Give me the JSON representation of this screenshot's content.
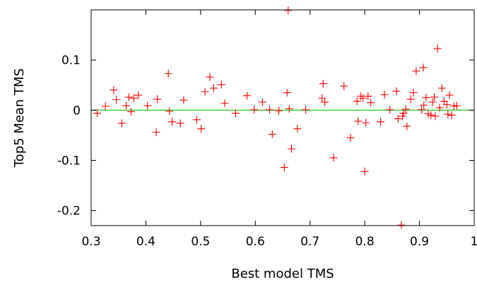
{
  "chart_data": {
    "type": "scatter",
    "title": "",
    "xlabel": "Best model TMS",
    "ylabel": "Top5 Mean TMS",
    "xlim": [
      0.3,
      1.0
    ],
    "ylim": [
      -0.23,
      0.2
    ],
    "xticks": [
      0.3,
      0.4,
      0.5,
      0.6,
      0.7,
      0.8,
      0.9,
      1.0
    ],
    "xtick_labels": [
      "0.3",
      "0.4",
      "0.5",
      "0.6",
      "0.7",
      "0.8",
      "0.9",
      "1"
    ],
    "yticks": [
      -0.2,
      -0.1,
      0,
      0.1
    ],
    "ytick_labels": [
      "-0.2",
      "-0.1",
      "0",
      "0.1"
    ],
    "grid": false,
    "legend": "none",
    "reference_line": {
      "y": 0,
      "color": "#33cc33"
    },
    "marker": {
      "shape": "plus",
      "color": "#ff0000"
    },
    "series": [
      {
        "name": "",
        "points": [
          [
            0.311,
            -0.006
          ],
          [
            0.326,
            0.008
          ],
          [
            0.341,
            0.04
          ],
          [
            0.346,
            0.021
          ],
          [
            0.356,
            -0.026
          ],
          [
            0.364,
            0.009
          ],
          [
            0.369,
            0.026
          ],
          [
            0.373,
            -0.003
          ],
          [
            0.378,
            0.024
          ],
          [
            0.386,
            0.03
          ],
          [
            0.403,
            0.009
          ],
          [
            0.419,
            -0.044
          ],
          [
            0.421,
            0.022
          ],
          [
            0.441,
            0.073
          ],
          [
            0.443,
            -0.002
          ],
          [
            0.448,
            -0.023
          ],
          [
            0.463,
            -0.026
          ],
          [
            0.469,
            0.02
          ],
          [
            0.493,
            -0.019
          ],
          [
            0.501,
            -0.037
          ],
          [
            0.508,
            0.037
          ],
          [
            0.517,
            0.066
          ],
          [
            0.524,
            0.044
          ],
          [
            0.538,
            0.051
          ],
          [
            0.544,
            0.014
          ],
          [
            0.564,
            -0.006
          ],
          [
            0.585,
            0.029
          ],
          [
            0.598,
            0.001
          ],
          [
            0.613,
            0.016
          ],
          [
            0.626,
            0.001
          ],
          [
            0.631,
            -0.048
          ],
          [
            0.643,
            -0.001
          ],
          [
            0.653,
            -0.114
          ],
          [
            0.658,
            0.035
          ],
          [
            0.66,
            0.199
          ],
          [
            0.662,
            0.003
          ],
          [
            0.666,
            -0.077
          ],
          [
            0.677,
            -0.037
          ],
          [
            0.692,
            0.001
          ],
          [
            0.722,
            0.024
          ],
          [
            0.724,
            0.053
          ],
          [
            0.727,
            0.016
          ],
          [
            0.743,
            -0.095
          ],
          [
            0.762,
            0.048
          ],
          [
            0.774,
            -0.055
          ],
          [
            0.786,
            0.018
          ],
          [
            0.788,
            -0.022
          ],
          [
            0.793,
            0.028
          ],
          [
            0.797,
            0.024
          ],
          [
            0.8,
            -0.122
          ],
          [
            0.802,
            -0.025
          ],
          [
            0.806,
            0.028
          ],
          [
            0.811,
            0.015
          ],
          [
            0.829,
            -0.023
          ],
          [
            0.836,
            0.031
          ],
          [
            0.846,
            0.001
          ],
          [
            0.858,
            0.038
          ],
          [
            0.861,
            -0.017
          ],
          [
            0.867,
            -0.229
          ],
          [
            0.869,
            -0.012
          ],
          [
            0.871,
            -0.006
          ],
          [
            0.875,
            0.002
          ],
          [
            0.877,
            -0.032
          ],
          [
            0.884,
            0.022
          ],
          [
            0.889,
            0.035
          ],
          [
            0.894,
            0.078
          ],
          [
            0.904,
            0.001
          ],
          [
            0.907,
            0.085
          ],
          [
            0.908,
            0.01
          ],
          [
            0.912,
            0.025
          ],
          [
            0.916,
            -0.007
          ],
          [
            0.921,
            -0.01
          ],
          [
            0.924,
            0.016
          ],
          [
            0.927,
            0.026
          ],
          [
            0.929,
            -0.012
          ],
          [
            0.933,
            0.123
          ],
          [
            0.937,
            0.005
          ],
          [
            0.941,
            0.044
          ],
          [
            0.945,
            0.018
          ],
          [
            0.95,
            0.011
          ],
          [
            0.952,
            -0.008
          ],
          [
            0.955,
            0.03
          ],
          [
            0.959,
            -0.01
          ],
          [
            0.963,
            0.008
          ],
          [
            0.968,
            0.009
          ]
        ]
      }
    ]
  }
}
